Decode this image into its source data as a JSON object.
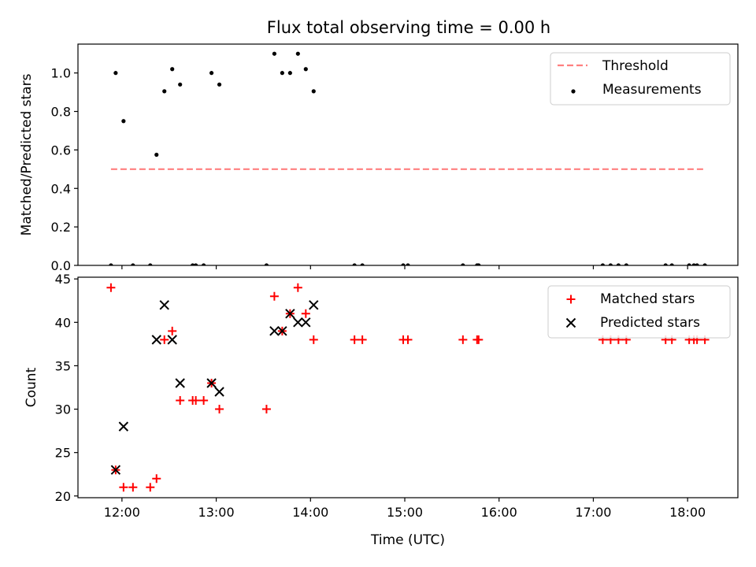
{
  "chart_data": [
    {
      "type": "scatter",
      "title": "Flux total observing time = 0.00 h",
      "xlabel": "",
      "ylabel": "Matched/Predicted stars",
      "xlim": [
        "11:32",
        "18:32"
      ],
      "ylim": [
        0,
        1.15
      ],
      "x_ticks": [
        "12:00",
        "13:00",
        "14:00",
        "15:00",
        "16:00",
        "17:00",
        "18:00"
      ],
      "x_tick_labels_shown": false,
      "y_ticks": [
        0.0,
        0.2,
        0.4,
        0.6,
        0.8,
        1.0
      ],
      "y_tick_labels": [
        "0.0",
        "0.2",
        "0.4",
        "0.6",
        "0.8",
        "1.0"
      ],
      "grid": false,
      "legend_position": "top-right",
      "series": [
        {
          "name": "Threshold",
          "style": "dashed-line",
          "color": "#ff7f7f",
          "points": [
            [
              "11:53",
              0.5
            ],
            [
              "18:10",
              0.5
            ]
          ]
        },
        {
          "name": "Measurements",
          "style": "dot",
          "color": "#000000",
          "points": [
            [
              "11:53",
              0.0
            ],
            [
              "11:56",
              1.0
            ],
            [
              "12:01",
              0.75
            ],
            [
              "12:07",
              0.0
            ],
            [
              "12:18",
              0.0
            ],
            [
              "12:22",
              0.575
            ],
            [
              "12:27",
              0.905
            ],
            [
              "12:32",
              1.02
            ],
            [
              "12:37",
              0.94
            ],
            [
              "12:45",
              0.0
            ],
            [
              "12:47",
              0.0
            ],
            [
              "12:52",
              0.0
            ],
            [
              "12:57",
              1.0
            ],
            [
              "13:02",
              0.94
            ],
            [
              "13:32",
              0.0
            ],
            [
              "13:37",
              1.1
            ],
            [
              "13:42",
              1.0
            ],
            [
              "13:47",
              1.0
            ],
            [
              "13:52",
              1.1
            ],
            [
              "13:57",
              1.02
            ],
            [
              "14:02",
              0.905
            ],
            [
              "14:28",
              0.0
            ],
            [
              "14:33",
              0.0
            ],
            [
              "14:59",
              0.0
            ],
            [
              "15:02",
              0.0
            ],
            [
              "15:37",
              0.0
            ],
            [
              "15:46",
              0.0
            ],
            [
              "15:47",
              0.0
            ],
            [
              "17:06",
              0.0
            ],
            [
              "17:11",
              0.0
            ],
            [
              "17:16",
              0.0
            ],
            [
              "17:21",
              0.0
            ],
            [
              "17:46",
              0.0
            ],
            [
              "17:50",
              0.0
            ],
            [
              "18:01",
              0.0
            ],
            [
              "18:04",
              0.0
            ],
            [
              "18:06",
              0.0
            ],
            [
              "18:11",
              0.0
            ]
          ]
        }
      ]
    },
    {
      "type": "scatter",
      "title": "",
      "xlabel": "Time (UTC)",
      "ylabel": "Count",
      "xlim": [
        "11:32",
        "18:32"
      ],
      "ylim": [
        19.8,
        45.2
      ],
      "x_ticks": [
        "12:00",
        "13:00",
        "14:00",
        "15:00",
        "16:00",
        "17:00",
        "18:00"
      ],
      "x_tick_labels": [
        "12:00",
        "13:00",
        "14:00",
        "15:00",
        "16:00",
        "17:00",
        "18:00"
      ],
      "y_ticks": [
        20,
        25,
        30,
        35,
        40,
        45
      ],
      "y_tick_labels": [
        "20",
        "25",
        "30",
        "35",
        "40",
        "45"
      ],
      "grid": false,
      "legend_position": "top-right",
      "series": [
        {
          "name": "Matched stars",
          "style": "plus",
          "color": "#ff0000",
          "points": [
            [
              "11:53",
              44
            ],
            [
              "11:56",
              23
            ],
            [
              "12:01",
              21
            ],
            [
              "12:07",
              21
            ],
            [
              "12:18",
              21
            ],
            [
              "12:22",
              22
            ],
            [
              "12:27",
              38
            ],
            [
              "12:32",
              39
            ],
            [
              "12:37",
              31
            ],
            [
              "12:45",
              31
            ],
            [
              "12:47",
              31
            ],
            [
              "12:52",
              31
            ],
            [
              "12:57",
              33
            ],
            [
              "13:02",
              30
            ],
            [
              "13:32",
              30
            ],
            [
              "13:37",
              43
            ],
            [
              "13:42",
              39
            ],
            [
              "13:47",
              41
            ],
            [
              "13:52",
              44
            ],
            [
              "13:57",
              41
            ],
            [
              "14:02",
              38
            ],
            [
              "14:28",
              38
            ],
            [
              "14:33",
              38
            ],
            [
              "14:59",
              38
            ],
            [
              "15:02",
              38
            ],
            [
              "15:37",
              38
            ],
            [
              "15:46",
              38
            ],
            [
              "15:47",
              38
            ],
            [
              "17:06",
              38
            ],
            [
              "17:11",
              38
            ],
            [
              "17:16",
              38
            ],
            [
              "17:21",
              38
            ],
            [
              "17:46",
              38
            ],
            [
              "17:50",
              38
            ],
            [
              "18:01",
              38
            ],
            [
              "18:04",
              38
            ],
            [
              "18:06",
              38
            ],
            [
              "18:11",
              38
            ]
          ]
        },
        {
          "name": "Predicted stars",
          "style": "cross",
          "color": "#000000",
          "points": [
            [
              "11:56",
              23
            ],
            [
              "12:01",
              28
            ],
            [
              "12:22",
              38
            ],
            [
              "12:27",
              42
            ],
            [
              "12:32",
              38
            ],
            [
              "12:37",
              33
            ],
            [
              "12:57",
              33
            ],
            [
              "13:02",
              32
            ],
            [
              "13:37",
              39
            ],
            [
              "13:42",
              39
            ],
            [
              "13:47",
              41
            ],
            [
              "13:52",
              40
            ],
            [
              "13:57",
              40
            ],
            [
              "14:02",
              42
            ]
          ]
        }
      ]
    }
  ]
}
